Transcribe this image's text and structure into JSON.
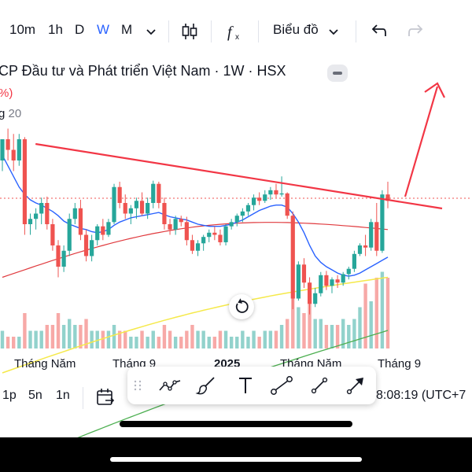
{
  "toolbar": {
    "timeframes": [
      "10m",
      "1h",
      "D",
      "W",
      "M"
    ],
    "active_timeframe": "W",
    "chart_type_label": "Biểu đồ"
  },
  "legend": {
    "title": "CP Đầu tư và Phát triển Việt Nam · 1W · HSX",
    "change_fragment": "%)",
    "ma_fragment": "g",
    "ma_value": "20"
  },
  "xaxis": {
    "labels": [
      "Tháng Năm",
      "Tháng 9",
      "2025",
      "Tháng Năm",
      "Tháng 9"
    ]
  },
  "bottom": {
    "ranges": [
      "1p",
      "5n",
      "1n"
    ],
    "clock": "8:08:19 (UTC+7"
  },
  "colors": {
    "up": "#26a69a",
    "down": "#ef5350",
    "trendline": "#f23645",
    "ma_blue": "#2962ff",
    "ma_red": "#e03a3e",
    "ma_yellow": "#f5e94a",
    "ma_green": "#4caf50",
    "active": "#2962ff"
  },
  "chart_data": {
    "type": "candlestick",
    "note_axis": "weekly candles; price axis not visible, values are relative price units",
    "x_labels": [
      "Tháng Năm",
      "Tháng 9",
      "2025",
      "Tháng Năm",
      "Tháng 9"
    ],
    "candles": [
      [
        44,
        46,
        43,
        46
      ],
      [
        46,
        47,
        44,
        45
      ],
      [
        45,
        46.5,
        43,
        44
      ],
      [
        44,
        46.5,
        43.5,
        46
      ],
      [
        46,
        46.2,
        37,
        38
      ],
      [
        38,
        39,
        37,
        38.5
      ],
      [
        38.5,
        39.5,
        37.5,
        39
      ],
      [
        39,
        40.5,
        38,
        40
      ],
      [
        40,
        40.6,
        37.5,
        38
      ],
      [
        38,
        38.5,
        35.5,
        36
      ],
      [
        36,
        36.5,
        33,
        34
      ],
      [
        34,
        36,
        33.5,
        35.5
      ],
      [
        35.5,
        39,
        35,
        38.5
      ],
      [
        38.5,
        40,
        38,
        39.5
      ],
      [
        39.5,
        40.3,
        36.5,
        37
      ],
      [
        37,
        37.5,
        34.5,
        35
      ],
      [
        35,
        37,
        34.5,
        36.5
      ],
      [
        36.5,
        38,
        36,
        37.8
      ],
      [
        37.8,
        38.5,
        36.5,
        37
      ],
      [
        37,
        38.5,
        36.8,
        38.2
      ],
      [
        38.2,
        41.8,
        38,
        41.5
      ],
      [
        41.5,
        42,
        39.5,
        40
      ],
      [
        40,
        40.8,
        38.5,
        39
      ],
      [
        39,
        39.8,
        38,
        39.5
      ],
      [
        39.5,
        40.5,
        38.5,
        40.2
      ],
      [
        40.2,
        41,
        38.8,
        39
      ],
      [
        39,
        40.5,
        38.5,
        40
      ],
      [
        40,
        42.1,
        39.5,
        41.8
      ],
      [
        41.8,
        42,
        39.5,
        40
      ],
      [
        40,
        40.5,
        37.5,
        38
      ],
      [
        38,
        38.5,
        37,
        37.5
      ],
      [
        37.5,
        38.8,
        37,
        38.5
      ],
      [
        38.5,
        38.8,
        37.8,
        38.2
      ],
      [
        38.2,
        38.7,
        36,
        36.5
      ],
      [
        36.5,
        37,
        35.2,
        35.5
      ],
      [
        35.5,
        36.5,
        35,
        36.2
      ],
      [
        36.2,
        37,
        35.5,
        36.8
      ],
      [
        36.8,
        37.5,
        36.3,
        37.2
      ],
      [
        37.2,
        37.8,
        36.5,
        37
      ],
      [
        37,
        37.5,
        36,
        36.3
      ],
      [
        36.3,
        38,
        36,
        37.8
      ],
      [
        37.8,
        38.5,
        37.5,
        38.2
      ],
      [
        38.2,
        39,
        37.8,
        38.8
      ],
      [
        38.8,
        39.5,
        38.2,
        39.2
      ],
      [
        39.2,
        40,
        38.8,
        39.8
      ],
      [
        39.8,
        40.8,
        39.3,
        40.5
      ],
      [
        40.5,
        41,
        39.8,
        40.2
      ],
      [
        40.2,
        41.2,
        40,
        40.8
      ],
      [
        40.8,
        41.5,
        40.3,
        41.2
      ],
      [
        41.2,
        41.8,
        40.5,
        40.8
      ],
      [
        40.8,
        42.5,
        40.6,
        40.9
      ],
      [
        40.9,
        41,
        38.5,
        38.8
      ],
      [
        38.8,
        39.2,
        30,
        31
      ],
      [
        31,
        34.5,
        30.8,
        34.2
      ],
      [
        34.2,
        34.8,
        32,
        32.5
      ],
      [
        32.5,
        33,
        29.5,
        30.5
      ],
      [
        30.5,
        32,
        30.2,
        31.5
      ],
      [
        31.5,
        33.5,
        31.2,
        33.2
      ],
      [
        33.2,
        33.6,
        31.8,
        32.2
      ],
      [
        32.2,
        33,
        31.5,
        32.8
      ],
      [
        32.8,
        33.2,
        32,
        32.5
      ],
      [
        32.5,
        33.5,
        32.2,
        33.3
      ],
      [
        33.3,
        34,
        32.8,
        33.8
      ],
      [
        33.8,
        35.5,
        33.5,
        35.2
      ],
      [
        35.2,
        36.2,
        35,
        36
      ],
      [
        36,
        37,
        35,
        35.8
      ],
      [
        35.8,
        38.5,
        35.5,
        38.2
      ],
      [
        38.2,
        40,
        35,
        35.5
      ],
      [
        35.5,
        41.2,
        35.3,
        40.8
      ],
      [
        40.8,
        42,
        39.5,
        40.2
      ]
    ],
    "volume": [
      3,
      2,
      2,
      2,
      6,
      3,
      3,
      3,
      4,
      4,
      6,
      4,
      5,
      4,
      4,
      5,
      3,
      3,
      3,
      3,
      4,
      3,
      3,
      2,
      2,
      3,
      2,
      3,
      2,
      4,
      3,
      2,
      2,
      3,
      4,
      3,
      3,
      2,
      2,
      3,
      3,
      2,
      2,
      3,
      2,
      3,
      2,
      3,
      3,
      3,
      4,
      5,
      9,
      7,
      6,
      8,
      5,
      5,
      4,
      4,
      4,
      5,
      4,
      5,
      7,
      11,
      8,
      12,
      13,
      12
    ],
    "moving_averages": {
      "ma_blue": [
        44.5,
        43.5,
        42.5,
        41.5,
        40.8,
        40.3,
        40,
        39.8,
        39.5,
        39.2,
        38.8,
        38.3,
        38,
        37.8,
        37.6,
        37.5,
        37.3,
        37.2,
        37.3,
        37.5,
        37.9,
        38.2,
        38.4,
        38.6,
        38.7,
        38.8,
        38.9,
        39,
        39.1,
        38.9,
        38.7,
        38.6,
        38.5,
        38.4,
        38.2,
        38,
        37.9,
        37.8,
        37.8,
        37.8,
        37.9,
        38,
        38.2,
        38.4,
        38.7,
        39,
        39.3,
        39.5,
        39.7,
        39.8,
        39.8,
        39.6,
        39,
        38.2,
        37.2,
        36,
        35,
        34.4,
        34,
        33.7,
        33.4,
        33.2,
        33.1,
        33.2,
        33.4,
        33.7,
        34,
        34.3,
        34.6,
        34.9
      ],
      "ma_red_start": 33,
      "ma_red_end": 37.5,
      "ma_yellow_start": 24,
      "ma_yellow_end": 33,
      "ma_green_start": 15,
      "ma_green_end": 28
    },
    "trendline": {
      "from": [
        2,
        44.5
      ],
      "to": [
        70,
        39.5
      ]
    },
    "arrow": "red arrow pointing up-right after last candle",
    "grid": false
  }
}
